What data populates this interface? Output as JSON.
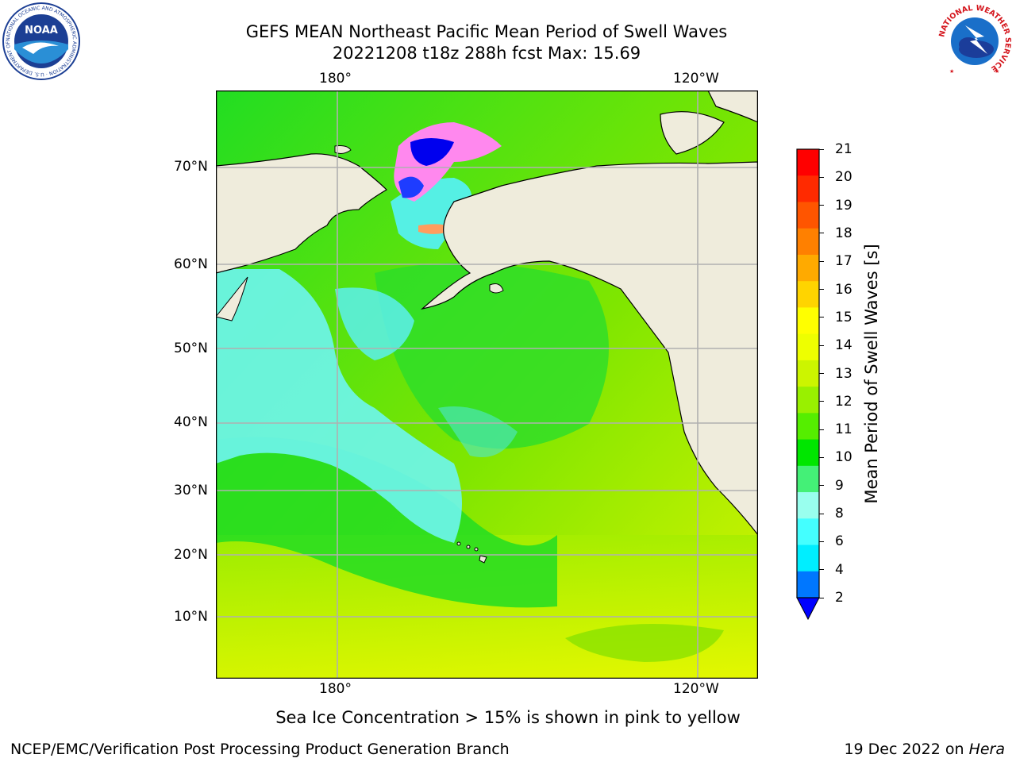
{
  "header": {
    "title": "GEFS MEAN Northeast Pacific Mean Period of Swell Waves",
    "subtitle": "20221208 t18z 288h fcst   Max: 15.69"
  },
  "logos": {
    "noaa_text": "NOAA",
    "noaa_ring": "NATIONAL OCEANIC AND ATMOSPHERIC ADMINISTRATION · U.S. DEPARTMENT OF COMMERCE",
    "nws_ring": "NATIONAL WEATHER SERVICE"
  },
  "map": {
    "lon_labels_top": [
      "180°",
      "120°W"
    ],
    "lon_labels_bottom": [
      "180°",
      "120°W"
    ],
    "lat_labels": [
      "70°N",
      "60°N",
      "50°N",
      "40°N",
      "30°N",
      "20°N",
      "10°N"
    ],
    "colors": {
      "land": "#efecdc",
      "grid": "#b0b0b0",
      "coast": "#000000"
    }
  },
  "colorbar": {
    "label": "Mean Period of Swell Waves [s]",
    "ticks": [
      "21",
      "20",
      "19",
      "18",
      "17",
      "16",
      "15",
      "14",
      "13",
      "12",
      "11",
      "10",
      "9",
      "8",
      "6",
      "4",
      "2"
    ],
    "colors_top_to_bottom": [
      "#ff0000",
      "#ff2a00",
      "#ff5500",
      "#ff8000",
      "#ffaa00",
      "#ffd400",
      "#ffff00",
      "#eeff00",
      "#ccf500",
      "#99f000",
      "#55ee00",
      "#00e600",
      "#44f077",
      "#99ffee",
      "#44ffff",
      "#00eeff",
      "#0077ff"
    ],
    "extend_color": "#0000ff"
  },
  "footer": {
    "note": "Sea Ice Concentration > 15% is shown in pink to yellow",
    "credit": "NCEP/EMC/Verification Post Processing Product Generation Branch",
    "date": "19 Dec 2022 on ",
    "machine": "Hera"
  }
}
